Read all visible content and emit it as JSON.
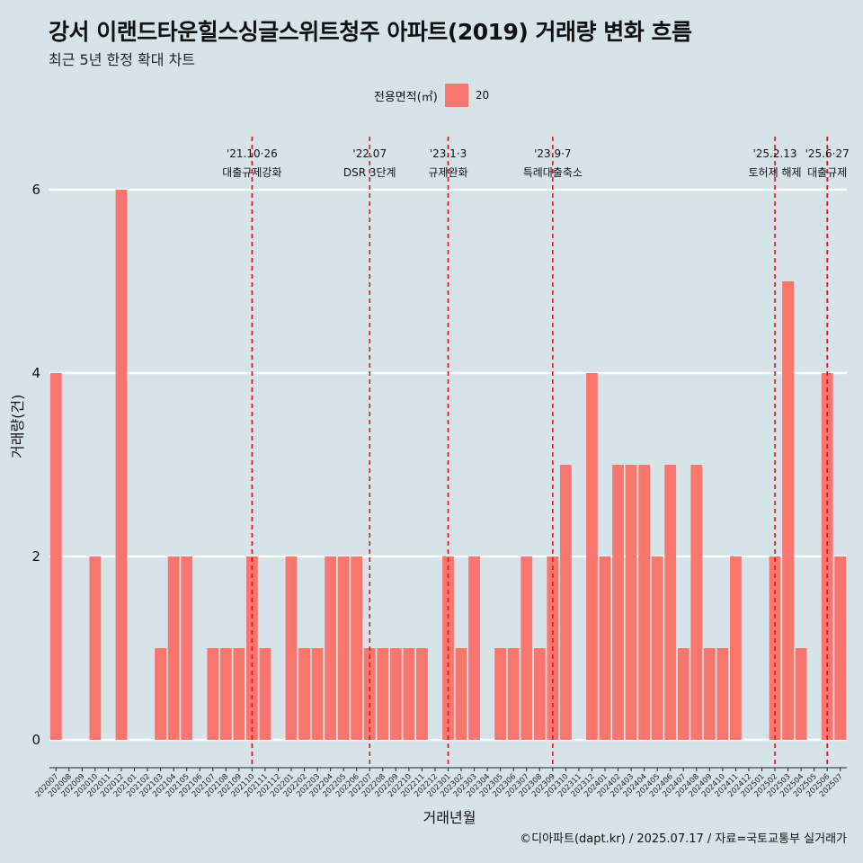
{
  "title": "강서 이랜드타운힐스싱글스위트청주 아파트(2019) 거래량 변화 흐름",
  "subtitle": "최근 5년 한정 확대 차트",
  "legend": {
    "title": "전용면적(㎡)",
    "label": "20"
  },
  "caption": "©디아파트(dapt.kr) / 2025.07.17 / 자료=국토교통부 실거래가",
  "colors": {
    "bar": "#f8766d",
    "background": "#d6e4ea",
    "event_line": "#e8141c",
    "grid": "#ffffff"
  },
  "chart_data": {
    "type": "bar",
    "xlabel": "거래년월",
    "ylabel": "거래량(건)",
    "ylim": [
      0,
      6
    ],
    "yticks": [
      0,
      2,
      4,
      6
    ],
    "grid": "horizontal major lines",
    "legend_position": "top",
    "series": [
      {
        "name": "20",
        "categories": [
          "202007",
          "202008",
          "202009",
          "202010",
          "202011",
          "202012",
          "202101",
          "202102",
          "202103",
          "202104",
          "202105",
          "202106",
          "202107",
          "202108",
          "202109",
          "202110",
          "202111",
          "202112",
          "202201",
          "202202",
          "202203",
          "202204",
          "202205",
          "202206",
          "202207",
          "202208",
          "202209",
          "202210",
          "202211",
          "202212",
          "202301",
          "202302",
          "202303",
          "202304",
          "202305",
          "202306",
          "202307",
          "202308",
          "202309",
          "202310",
          "202311",
          "202312",
          "202401",
          "202402",
          "202403",
          "202404",
          "202405",
          "202406",
          "202407",
          "202408",
          "202409",
          "202410",
          "202411",
          "202412",
          "202501",
          "202502",
          "202503",
          "202504",
          "202505",
          "202506",
          "202507"
        ],
        "values": [
          4,
          0,
          0,
          2,
          0,
          6,
          0,
          0,
          1,
          2,
          2,
          0,
          1,
          1,
          1,
          2,
          1,
          0,
          2,
          1,
          1,
          2,
          2,
          2,
          1,
          1,
          1,
          1,
          1,
          0,
          2,
          1,
          2,
          0,
          1,
          1,
          2,
          1,
          2,
          3,
          0,
          4,
          2,
          3,
          3,
          3,
          2,
          3,
          1,
          3,
          1,
          1,
          2,
          0,
          0,
          2,
          5,
          1,
          0,
          4,
          2
        ]
      }
    ],
    "annotations": [
      {
        "date_label": "'21.10·26",
        "event": "대출규제강화",
        "at": "202110"
      },
      {
        "date_label": "'22.07",
        "event": "DSR 3단계",
        "at": "202207"
      },
      {
        "date_label": "'23.1·3",
        "event": "규제완화",
        "at": "202301"
      },
      {
        "date_label": "'23.9·7",
        "event": "특례대출축소",
        "at": "202309"
      },
      {
        "date_label": "'25.2.13",
        "event": "토허제 해제",
        "at": "202502"
      },
      {
        "date_label": "'25.6·27",
        "event": "대출규제",
        "at": "202506"
      }
    ]
  }
}
